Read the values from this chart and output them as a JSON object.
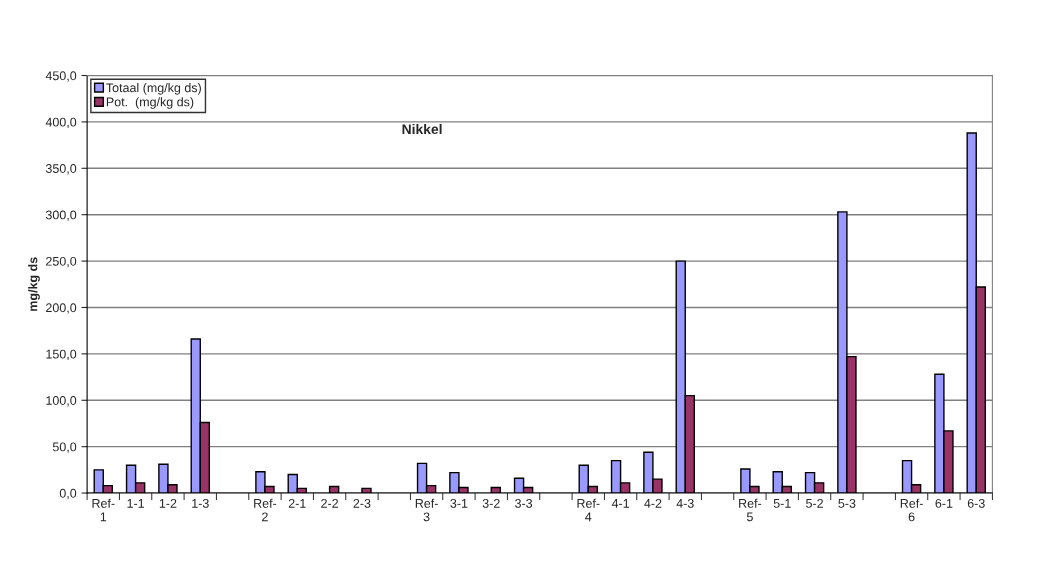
{
  "chart_data": {
    "type": "bar",
    "title": "Nikkel",
    "ylabel": "mg/kg ds",
    "categories": [
      "Ref-\n1",
      "1-1",
      "1-2",
      "1-3",
      null,
      "Ref-\n2",
      "2-1",
      "2-2",
      "2-3",
      null,
      "Ref-\n3",
      "3-1",
      "3-2",
      "3-3",
      null,
      "Ref-\n4",
      "4-1",
      "4-2",
      "4-3",
      null,
      "Ref-\n5",
      "5-1",
      "5-2",
      "5-3",
      null,
      "Ref-\n6",
      "6-1",
      "6-3"
    ],
    "series": [
      {
        "name": "Totaal (mg/kg ds)",
        "color": "#9999ff",
        "values": [
          25,
          30,
          31,
          166,
          null,
          23,
          20,
          null,
          null,
          null,
          32,
          22,
          null,
          16,
          null,
          30,
          35,
          44,
          250,
          null,
          26,
          23,
          22,
          303,
          null,
          35,
          128,
          388
        ]
      },
      {
        "name": "Pot.  (mg/kg ds)",
        "color": "#993366",
        "values": [
          8,
          11,
          9,
          76,
          null,
          7,
          5,
          7,
          5,
          null,
          8,
          6,
          6,
          6,
          null,
          7,
          11,
          15,
          105,
          null,
          7,
          7,
          11,
          147,
          null,
          9,
          67,
          222
        ]
      }
    ],
    "ylim": [
      0,
      450
    ],
    "yticks": [
      {
        "value": 0,
        "label": "0,0"
      },
      {
        "value": 50,
        "label": "50,0"
      },
      {
        "value": 100,
        "label": "100,0"
      },
      {
        "value": 150,
        "label": "150,0"
      },
      {
        "value": 200,
        "label": "200,0"
      },
      {
        "value": 250,
        "label": "250,0"
      },
      {
        "value": 300,
        "label": "300,0"
      },
      {
        "value": 350,
        "label": "350,0"
      },
      {
        "value": 400,
        "label": "400,0"
      },
      {
        "value": 450,
        "label": "450,0"
      }
    ],
    "grid": "y",
    "legend": "top left"
  }
}
